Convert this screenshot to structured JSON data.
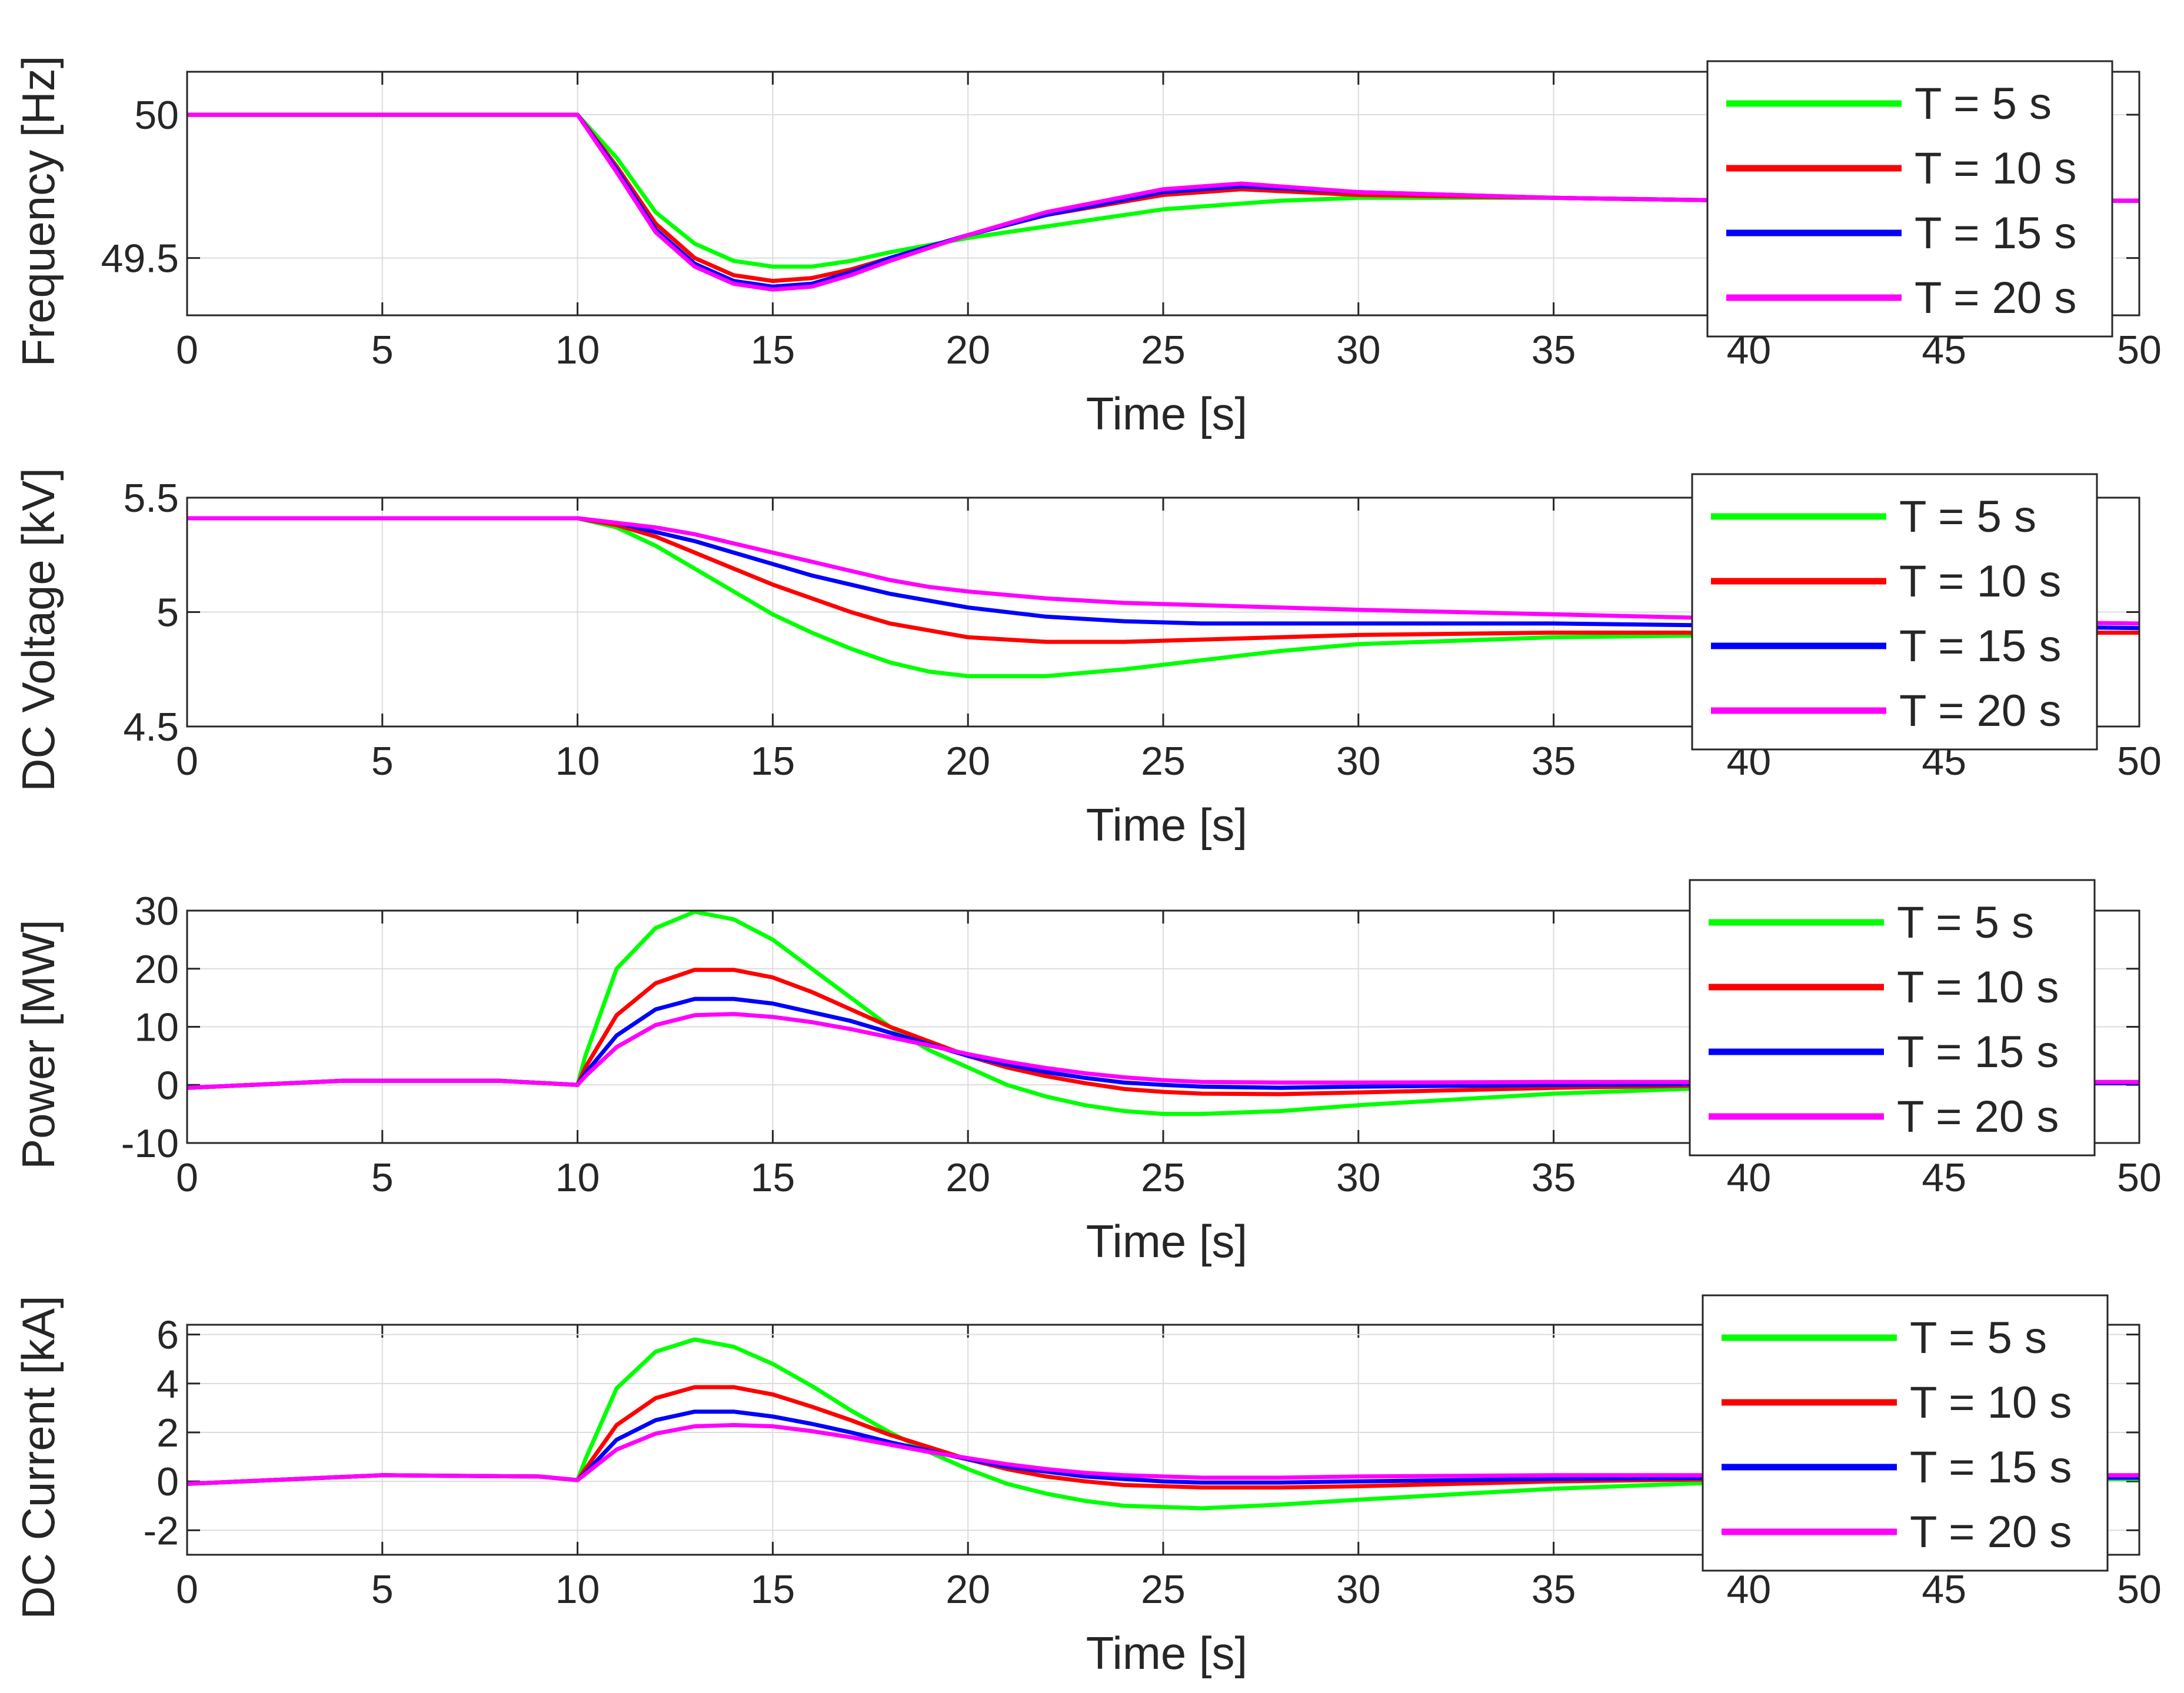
{
  "series_styles": [
    {
      "name": "T = 5 s",
      "color": "#00ff00"
    },
    {
      "name": "T = 10 s",
      "color": "#ff0000"
    },
    {
      "name": "T = 15 s",
      "color": "#0000ff"
    },
    {
      "name": "T = 20 s",
      "color": "#ff00ff"
    }
  ],
  "chart_data": [
    {
      "id": "frequency",
      "type": "line",
      "title": "",
      "xlabel": "Time [s]",
      "ylabel": "Frequency [Hz]",
      "xlim": [
        0,
        50
      ],
      "ylim": [
        49.3,
        50.15
      ],
      "xticks": [
        0,
        5,
        10,
        15,
        20,
        25,
        30,
        35,
        40,
        45,
        50
      ],
      "yticks": [
        49.5,
        50
      ],
      "ytick_labels": [
        "49.5",
        "50"
      ],
      "grid": true,
      "legend": "top-right",
      "series": [
        {
          "name": "T = 5 s",
          "x": [
            0,
            10,
            11,
            12,
            13,
            14,
            15,
            16,
            17,
            18,
            20,
            22,
            25,
            28,
            30,
            35,
            40,
            45,
            50
          ],
          "values": [
            50,
            50,
            49.85,
            49.66,
            49.55,
            49.49,
            49.47,
            49.47,
            49.49,
            49.52,
            49.57,
            49.61,
            49.67,
            49.7,
            49.71,
            49.71,
            49.7,
            49.7,
            49.7
          ]
        },
        {
          "name": "T = 10 s",
          "x": [
            0,
            10,
            11,
            12,
            13,
            14,
            15,
            16,
            17,
            18,
            20,
            22,
            25,
            27,
            30,
            35,
            40,
            45,
            50
          ],
          "values": [
            50,
            50,
            49.82,
            49.62,
            49.5,
            49.44,
            49.42,
            49.43,
            49.46,
            49.5,
            49.58,
            49.65,
            49.72,
            49.74,
            49.72,
            49.71,
            49.7,
            49.7,
            49.7
          ]
        },
        {
          "name": "T = 15 s",
          "x": [
            0,
            10,
            11,
            12,
            13,
            14,
            15,
            16,
            17,
            18,
            20,
            22,
            25,
            27,
            30,
            35,
            40,
            45,
            50
          ],
          "values": [
            50,
            50,
            49.81,
            49.6,
            49.48,
            49.42,
            49.4,
            49.41,
            49.45,
            49.5,
            49.58,
            49.65,
            49.73,
            49.75,
            49.73,
            49.71,
            49.7,
            49.7,
            49.7
          ]
        },
        {
          "name": "T = 20 s",
          "x": [
            0,
            10,
            11,
            12,
            13,
            14,
            15,
            16,
            17,
            18,
            20,
            22,
            25,
            27,
            30,
            35,
            40,
            45,
            50
          ],
          "values": [
            50,
            50,
            49.8,
            49.59,
            49.47,
            49.41,
            49.39,
            49.4,
            49.44,
            49.49,
            49.58,
            49.66,
            49.74,
            49.76,
            49.73,
            49.71,
            49.7,
            49.7,
            49.7
          ]
        }
      ]
    },
    {
      "id": "dc-voltage",
      "type": "line",
      "title": "",
      "xlabel": "Time [s]",
      "ylabel": "DC Voltage [kV]",
      "xlim": [
        0,
        50
      ],
      "ylim": [
        4.5,
        5.5
      ],
      "xticks": [
        0,
        5,
        10,
        15,
        20,
        25,
        30,
        35,
        40,
        45,
        50
      ],
      "yticks": [
        4.5,
        5,
        5.5
      ],
      "ytick_labels": [
        "4.5",
        "5",
        "5.5"
      ],
      "grid": true,
      "legend": "top-right",
      "series": [
        {
          "name": "T = 5 s",
          "x": [
            0,
            10,
            11,
            12,
            13,
            14,
            15,
            16,
            17,
            18,
            19,
            20,
            22,
            24,
            26,
            28,
            30,
            35,
            40,
            45,
            50
          ],
          "values": [
            5.41,
            5.41,
            5.37,
            5.29,
            5.19,
            5.09,
            4.99,
            4.91,
            4.84,
            4.78,
            4.74,
            4.72,
            4.72,
            4.75,
            4.79,
            4.83,
            4.86,
            4.89,
            4.9,
            4.91,
            4.91
          ]
        },
        {
          "name": "T = 10 s",
          "x": [
            0,
            10,
            11,
            12,
            13,
            14,
            15,
            16,
            17,
            18,
            19,
            20,
            22,
            24,
            26,
            28,
            30,
            35,
            40,
            45,
            50
          ],
          "values": [
            5.41,
            5.41,
            5.38,
            5.33,
            5.26,
            5.19,
            5.12,
            5.06,
            5.0,
            4.95,
            4.92,
            4.89,
            4.87,
            4.87,
            4.88,
            4.89,
            4.9,
            4.91,
            4.91,
            4.91,
            4.91
          ]
        },
        {
          "name": "T = 15 s",
          "x": [
            0,
            10,
            11,
            12,
            13,
            14,
            15,
            16,
            17,
            18,
            19,
            20,
            22,
            24,
            26,
            28,
            30,
            35,
            40,
            45,
            50
          ],
          "values": [
            5.41,
            5.41,
            5.39,
            5.35,
            5.31,
            5.26,
            5.21,
            5.16,
            5.12,
            5.08,
            5.05,
            5.02,
            4.98,
            4.96,
            4.95,
            4.95,
            4.95,
            4.95,
            4.94,
            4.94,
            4.93
          ]
        },
        {
          "name": "T = 20 s",
          "x": [
            0,
            10,
            11,
            12,
            13,
            14,
            15,
            16,
            17,
            18,
            19,
            20,
            22,
            24,
            26,
            28,
            30,
            35,
            40,
            45,
            50
          ],
          "values": [
            5.41,
            5.41,
            5.39,
            5.37,
            5.34,
            5.3,
            5.26,
            5.22,
            5.18,
            5.14,
            5.11,
            5.09,
            5.06,
            5.04,
            5.03,
            5.02,
            5.01,
            4.99,
            4.97,
            4.96,
            4.95
          ]
        }
      ]
    },
    {
      "id": "power",
      "type": "line",
      "title": "",
      "xlabel": "Time [s]",
      "ylabel": "Power [MW]",
      "xlim": [
        0,
        50
      ],
      "ylim": [
        -10,
        30
      ],
      "xticks": [
        0,
        5,
        10,
        15,
        20,
        25,
        30,
        35,
        40,
        45,
        50
      ],
      "yticks": [
        -10,
        0,
        10,
        20,
        30
      ],
      "ytick_labels": [
        "-10",
        "0",
        "10",
        "20",
        "30"
      ],
      "grid": true,
      "legend": "top-right",
      "series": [
        {
          "name": "T = 5 s",
          "x": [
            0,
            4,
            8,
            10,
            10.2,
            11,
            12,
            13,
            14,
            15,
            16,
            17,
            18,
            19,
            20,
            21,
            22,
            23,
            24,
            25,
            26,
            28,
            30,
            35,
            40,
            45,
            50
          ],
          "values": [
            -0.5,
            0.7,
            0.7,
            0,
            5,
            20,
            27,
            29.8,
            28.5,
            25,
            20,
            15,
            10,
            6,
            3,
            0,
            -2,
            -3.5,
            -4.5,
            -5,
            -5,
            -4.5,
            -3.5,
            -1.5,
            -0.3,
            0.2,
            0.3
          ]
        },
        {
          "name": "T = 10 s",
          "x": [
            0,
            4,
            8,
            10,
            10.2,
            11,
            12,
            13,
            14,
            15,
            16,
            17,
            18,
            19,
            20,
            21,
            22,
            23,
            24,
            25,
            26,
            28,
            30,
            35,
            40,
            45,
            50
          ],
          "values": [
            -0.5,
            0.7,
            0.7,
            0,
            3,
            12,
            17.5,
            19.8,
            19.8,
            18.5,
            16,
            13,
            10,
            7.5,
            5,
            3,
            1.5,
            0.3,
            -0.7,
            -1.2,
            -1.5,
            -1.6,
            -1.3,
            -0.5,
            0,
            0.2,
            0.3
          ]
        },
        {
          "name": "T = 15 s",
          "x": [
            0,
            4,
            8,
            10,
            10.2,
            11,
            12,
            13,
            14,
            15,
            16,
            17,
            18,
            19,
            20,
            21,
            22,
            23,
            24,
            25,
            26,
            28,
            30,
            35,
            40,
            45,
            50
          ],
          "values": [
            -0.5,
            0.7,
            0.7,
            0,
            2,
            8.5,
            13,
            14.8,
            14.8,
            14,
            12.5,
            11,
            9,
            7,
            5,
            3.5,
            2.2,
            1.2,
            0.4,
            0,
            -0.3,
            -0.5,
            -0.3,
            0,
            0.2,
            0.3,
            0.3
          ]
        },
        {
          "name": "T = 20 s",
          "x": [
            0,
            4,
            8,
            10,
            10.2,
            11,
            12,
            13,
            14,
            15,
            16,
            17,
            18,
            19,
            20,
            21,
            22,
            23,
            24,
            25,
            26,
            28,
            30,
            35,
            40,
            45,
            50
          ],
          "values": [
            -0.5,
            0.7,
            0.7,
            0,
            1.5,
            6.5,
            10.3,
            12,
            12.2,
            11.7,
            10.8,
            9.6,
            8.2,
            6.8,
            5.3,
            4,
            2.9,
            2,
            1.3,
            0.8,
            0.5,
            0.4,
            0.4,
            0.5,
            0.5,
            0.5,
            0.5
          ]
        }
      ]
    },
    {
      "id": "dc-current",
      "type": "line",
      "title": "",
      "xlabel": "Time [s]",
      "ylabel": "DC Current [kA]",
      "xlim": [
        0,
        50
      ],
      "ylim": [
        -3,
        6.4
      ],
      "xticks": [
        0,
        5,
        10,
        15,
        20,
        25,
        30,
        35,
        40,
        45,
        50
      ],
      "yticks": [
        -2,
        0,
        2,
        4,
        6
      ],
      "ytick_labels": [
        "-2",
        "0",
        "2",
        "4",
        "6"
      ],
      "grid": true,
      "legend": "top-right",
      "series": [
        {
          "name": "T = 5 s",
          "x": [
            0,
            5,
            9,
            10,
            10.2,
            11,
            12,
            13,
            14,
            15,
            16,
            17,
            18,
            19,
            20,
            21,
            22,
            23,
            24,
            25,
            26,
            28,
            30,
            35,
            40,
            45,
            50
          ],
          "values": [
            -0.1,
            0.25,
            0.2,
            0.05,
            0.9,
            3.8,
            5.3,
            5.8,
            5.5,
            4.8,
            3.9,
            2.9,
            2.0,
            1.2,
            0.5,
            -0.1,
            -0.5,
            -0.8,
            -1.0,
            -1.05,
            -1.1,
            -0.95,
            -0.75,
            -0.3,
            0,
            0.1,
            0.1
          ]
        },
        {
          "name": "T = 10 s",
          "x": [
            0,
            5,
            9,
            10,
            10.2,
            11,
            12,
            13,
            14,
            15,
            16,
            17,
            18,
            19,
            20,
            21,
            22,
            23,
            24,
            25,
            26,
            28,
            30,
            35,
            40,
            45,
            50
          ],
          "values": [
            -0.1,
            0.25,
            0.2,
            0.05,
            0.5,
            2.3,
            3.4,
            3.85,
            3.85,
            3.55,
            3.05,
            2.5,
            1.9,
            1.4,
            0.9,
            0.5,
            0.2,
            0,
            -0.15,
            -0.2,
            -0.25,
            -0.25,
            -0.2,
            0,
            0.1,
            0.15,
            0.15
          ]
        },
        {
          "name": "T = 15 s",
          "x": [
            0,
            5,
            9,
            10,
            10.2,
            11,
            12,
            13,
            14,
            15,
            16,
            17,
            18,
            19,
            20,
            21,
            22,
            23,
            24,
            25,
            26,
            28,
            30,
            35,
            40,
            45,
            50
          ],
          "values": [
            -0.1,
            0.25,
            0.2,
            0.05,
            0.35,
            1.7,
            2.5,
            2.85,
            2.85,
            2.65,
            2.35,
            2.0,
            1.6,
            1.25,
            0.9,
            0.6,
            0.4,
            0.2,
            0.1,
            0,
            -0.05,
            -0.05,
            0,
            0.1,
            0.15,
            0.15,
            0.15
          ]
        },
        {
          "name": "T = 20 s",
          "x": [
            0,
            5,
            9,
            10,
            10.2,
            11,
            12,
            13,
            14,
            15,
            16,
            17,
            18,
            19,
            20,
            21,
            22,
            23,
            24,
            25,
            26,
            28,
            30,
            35,
            40,
            45,
            50
          ],
          "values": [
            -0.1,
            0.25,
            0.2,
            0.05,
            0.3,
            1.3,
            1.95,
            2.25,
            2.3,
            2.25,
            2.05,
            1.8,
            1.5,
            1.2,
            0.95,
            0.7,
            0.5,
            0.35,
            0.25,
            0.2,
            0.15,
            0.15,
            0.2,
            0.25,
            0.25,
            0.25,
            0.25
          ]
        }
      ]
    }
  ]
}
